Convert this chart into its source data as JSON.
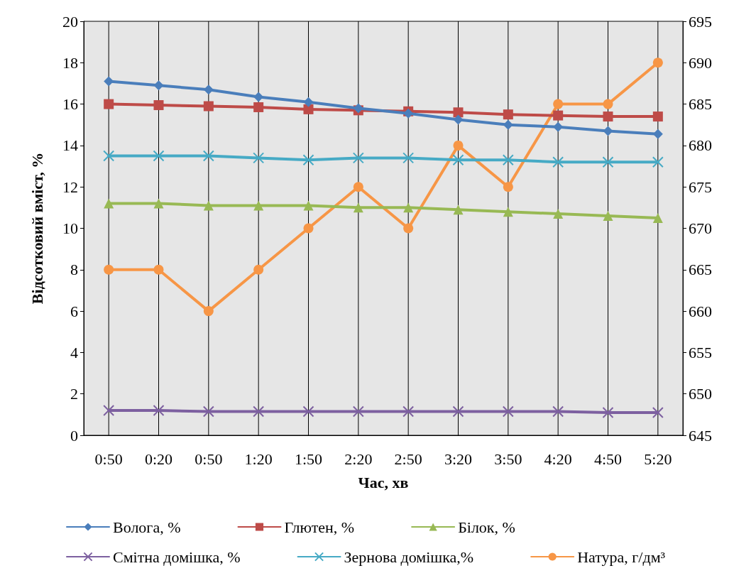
{
  "chart_data": {
    "type": "line",
    "xlabel": "Час, хв",
    "ylabel": "Відсотковий вміст, %",
    "categories": [
      "0:50",
      "0:20",
      "0:50",
      "1:20",
      "1:50",
      "2:20",
      "2:50",
      "3:20",
      "3:50",
      "4:20",
      "4:50",
      "5:20"
    ],
    "series": [
      {
        "name": "Волога, %",
        "color": "#4a7ebb",
        "marker": "diamond",
        "values": [
          17.1,
          16.9,
          16.7,
          16.35,
          16.1,
          15.8,
          15.55,
          15.25,
          15.0,
          14.9,
          14.7,
          14.55
        ]
      },
      {
        "name": "Глютен, %",
        "color": "#be4b48",
        "marker": "square",
        "values": [
          16.0,
          15.95,
          15.9,
          15.85,
          15.75,
          15.7,
          15.65,
          15.6,
          15.5,
          15.45,
          15.4,
          15.4
        ]
      },
      {
        "name": "Білок, %",
        "color": "#98b954",
        "marker": "triangle",
        "values": [
          11.2,
          11.2,
          11.1,
          11.1,
          11.1,
          11.0,
          11.0,
          10.9,
          10.8,
          10.7,
          10.6,
          10.5
        ]
      },
      {
        "name": "Смітна домішка, %",
        "color": "#7d60a0",
        "marker": "cross",
        "values": [
          1.2,
          1.2,
          1.15,
          1.15,
          1.15,
          1.15,
          1.15,
          1.15,
          1.15,
          1.15,
          1.1,
          1.1
        ]
      },
      {
        "name": "Зернова домішка,%",
        "color": "#46aac5",
        "marker": "cross",
        "values": [
          13.5,
          13.5,
          13.5,
          13.4,
          13.3,
          13.4,
          13.4,
          13.3,
          13.3,
          13.2,
          13.2,
          13.2
        ]
      },
      {
        "name": "Натура, г/дм³",
        "color": "#f79646",
        "marker": "circle",
        "axis": "y2",
        "values": [
          665,
          665,
          660,
          665,
          670,
          675,
          670,
          680,
          675,
          685,
          685,
          690
        ]
      }
    ],
    "ylim": [
      0,
      20
    ],
    "yticks": [
      0,
      2,
      4,
      6,
      8,
      10,
      12,
      14,
      16,
      18,
      20
    ],
    "y2lim": [
      645,
      695
    ],
    "y2ticks": [
      645,
      650,
      655,
      660,
      665,
      670,
      675,
      680,
      685,
      690,
      695
    ],
    "grid": "x",
    "legend": "bottom",
    "line_style": "solid"
  }
}
